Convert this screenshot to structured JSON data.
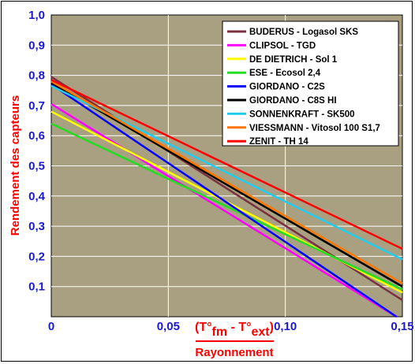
{
  "chart_data": {
    "type": "line",
    "title": "",
    "xlabel": "Rayonnement",
    "ylabel": "Rendement des capteurs",
    "x_formula": {
      "open": "(",
      "t1": "T°",
      "s1": "fm",
      "minus": " - ",
      "t2": "T°",
      "s2": "ext",
      "close": ")"
    },
    "xlim": [
      0,
      0.15
    ],
    "ylim": [
      0,
      1.0
    ],
    "x_ticks": [
      {
        "value": 0,
        "label": "0"
      },
      {
        "value": 0.05,
        "label": "0,05"
      },
      {
        "value": 0.1,
        "label": "0,10"
      },
      {
        "value": 0.15,
        "label": "0,15"
      }
    ],
    "y_ticks": [
      {
        "value": 0.1,
        "label": "0,1"
      },
      {
        "value": 0.2,
        "label": "0,2"
      },
      {
        "value": 0.3,
        "label": "0,3"
      },
      {
        "value": 0.4,
        "label": "0,4"
      },
      {
        "value": 0.5,
        "label": "0,5"
      },
      {
        "value": 0.6,
        "label": "0,6"
      },
      {
        "value": 0.7,
        "label": "0,7"
      },
      {
        "value": 0.8,
        "label": "0,8"
      },
      {
        "value": 0.9,
        "label": "0,9"
      },
      {
        "value": 1.0,
        "label": "1,0"
      }
    ],
    "grid": true,
    "legend_position": "top-right",
    "plot_background": "#a8a080",
    "series": [
      {
        "name": "BUDERUS - Logasol SKS",
        "color": "#7a3040",
        "x": [
          0,
          0.15
        ],
        "y": [
          0.795,
          0.055
        ]
      },
      {
        "name": "CLIPSOL - TGD",
        "color": "#ff00ff",
        "x": [
          0,
          0.1475
        ],
        "y": [
          0.705,
          0.0
        ]
      },
      {
        "name": "DE DIETRICH - Sol 1",
        "color": "#ffff00",
        "x": [
          0,
          0.15
        ],
        "y": [
          0.68,
          0.08
        ]
      },
      {
        "name": "ESE - Ecosol 2,4",
        "color": "#22dd22",
        "x": [
          0,
          0.15
        ],
        "y": [
          0.64,
          0.09
        ]
      },
      {
        "name": "GIORDANO - C2S",
        "color": "#0000ff",
        "x": [
          0,
          0.1475
        ],
        "y": [
          0.77,
          0.0
        ]
      },
      {
        "name": "GIORDANO - C8S HI",
        "color": "#000000",
        "x": [
          0,
          0.15
        ],
        "y": [
          0.775,
          0.1
        ]
      },
      {
        "name": "SONNENKRAFT - SK500",
        "color": "#22ccee",
        "x": [
          0,
          0.15
        ],
        "y": [
          0.765,
          0.19
        ]
      },
      {
        "name": "VIESSMANN - Vitosol 100 S1,7",
        "color": "#ff7700",
        "x": [
          0,
          0.15
        ],
        "y": [
          0.78,
          0.11
        ]
      },
      {
        "name": "ZENIT - TH 14",
        "color": "#ff0000",
        "x": [
          0,
          0.15
        ],
        "y": [
          0.785,
          0.225
        ]
      }
    ]
  }
}
